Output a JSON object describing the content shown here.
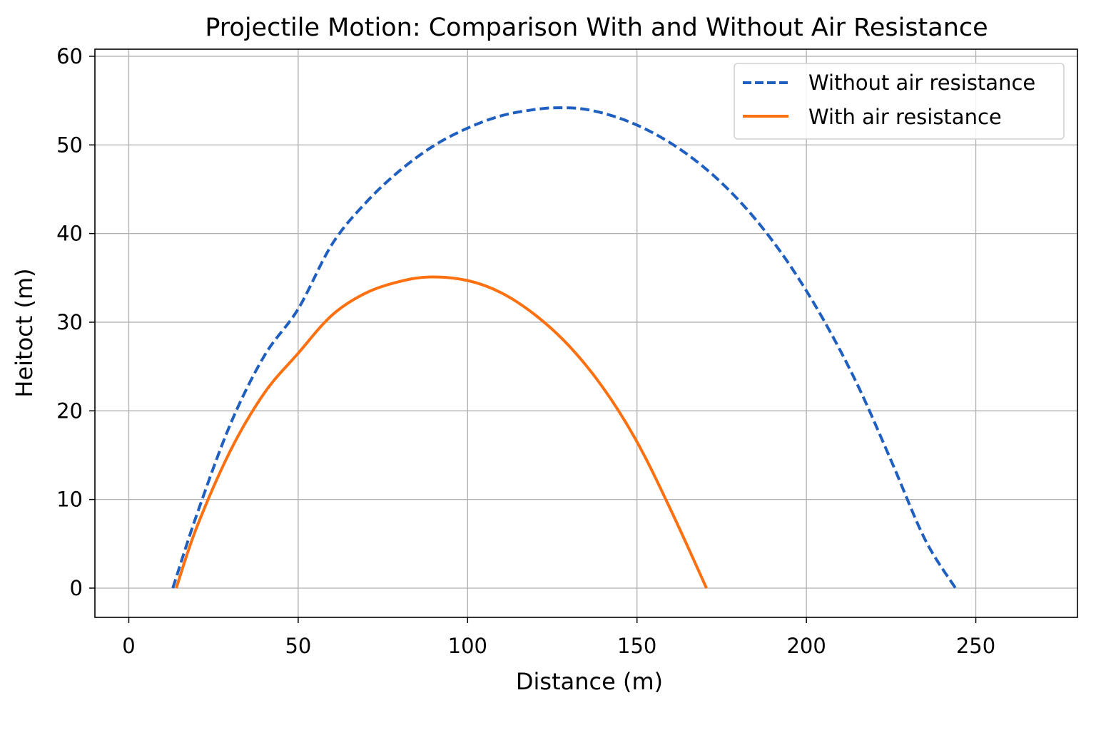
{
  "chart_data": {
    "type": "line",
    "title": "Projectile Motion: Comparison With and Without Air Resistance",
    "xlabel": "Distance (m)",
    "ylabel": "Heitoct (m)",
    "xlim": [
      -10,
      280
    ],
    "ylim": [
      -3.3,
      60.8
    ],
    "xticks": [
      0,
      50,
      100,
      150,
      200,
      250
    ],
    "yticks": [
      0,
      10,
      20,
      30,
      40,
      50,
      60
    ],
    "grid": true,
    "legend_position": "top-right",
    "series": [
      {
        "name": "Without air resistance",
        "color": "#1f5fbf",
        "style": "dashed",
        "x": [
          13,
          20,
          30,
          40,
          50,
          60,
          70,
          80,
          90,
          100,
          110,
          120,
          127,
          135,
          145,
          155,
          165,
          175,
          185,
          195,
          205,
          215,
          225,
          235,
          244
        ],
        "y": [
          0,
          8.2,
          18.5,
          26.2,
          31.5,
          38.8,
          43.5,
          47.1,
          49.9,
          51.9,
          53.3,
          54.0,
          54.2,
          54.0,
          53.0,
          51.3,
          48.9,
          45.7,
          41.6,
          36.5,
          30.3,
          23.0,
          14.4,
          5.5,
          0
        ]
      },
      {
        "name": "With air resistance",
        "color": "#ff7010",
        "style": "solid",
        "x": [
          14,
          20,
          30,
          40,
          50,
          60,
          70,
          80,
          89,
          100,
          110,
          120,
          130,
          140,
          150,
          160,
          170.5
        ],
        "y": [
          0,
          6.8,
          15.5,
          22.0,
          26.5,
          30.8,
          33.3,
          34.6,
          35.1,
          34.7,
          33.3,
          30.8,
          27.3,
          22.6,
          16.5,
          8.8,
          0
        ]
      }
    ]
  }
}
